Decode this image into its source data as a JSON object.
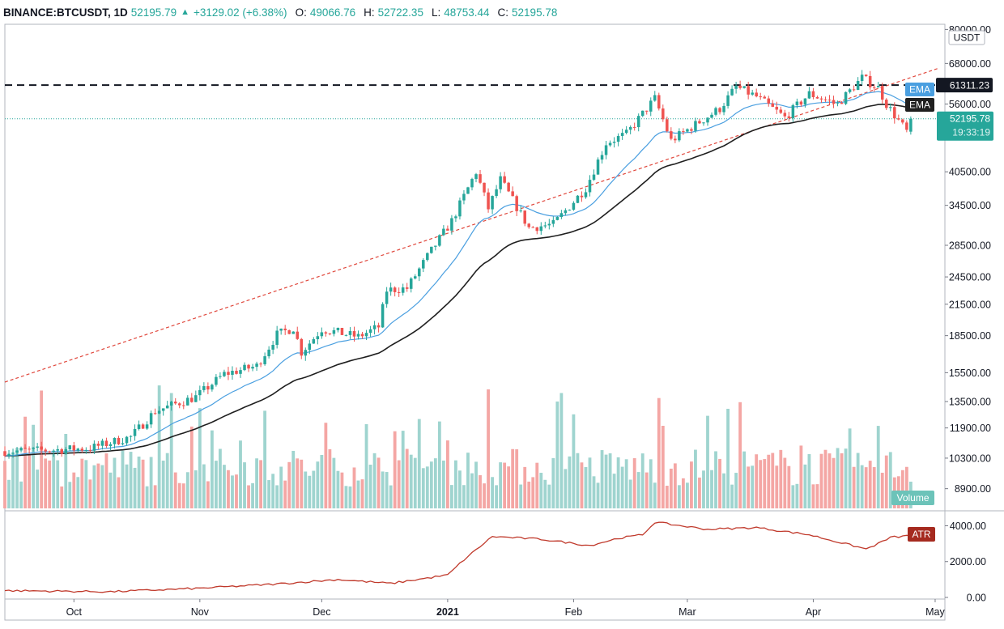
{
  "header": {
    "symbol": "BINANCE:BTCUSDT, 1D",
    "price": "52195.79",
    "change": "+3129.02 (+6.38%)",
    "o_label": "O:",
    "o_value": "49066.76",
    "h_label": "H:",
    "h_value": "52722.35",
    "l_label": "L:",
    "l_value": "48753.44",
    "c_label": "C:",
    "c_value": "52195.78"
  },
  "colors": {
    "up": "#26a69a",
    "down": "#ef5350",
    "up_volume": "#9fd4cf",
    "down_volume": "#f4a6a4",
    "ema_fast": "#4a9fe0",
    "ema_slow": "#1f1f1f",
    "trendline": "#e0473c",
    "resistance": "#131722",
    "atr": "#c0392b",
    "last_price": "#26a69a"
  },
  "chart_data": {
    "type": "candlestick",
    "price_scale": "log",
    "currency": "USDT",
    "y_ticks": [
      "80000.00",
      "68000.00",
      "56000.00",
      "40500.00",
      "34500.00",
      "28500.00",
      "24500.00",
      "21500.00",
      "18500.00",
      "15500.00",
      "13500.00",
      "11900.00",
      "10300.00",
      "8900.00"
    ],
    "x_ticks": [
      "Oct",
      "Nov",
      "Dec",
      "2021",
      "Feb",
      "Mar",
      "Apr",
      "May"
    ],
    "x_range": [
      "2020-09-14",
      "2021-05-03"
    ],
    "resistance_level": "61311.23",
    "last_price": "52195.78",
    "countdown": "19:33:19",
    "price_anchors": [
      {
        "date": "2020-09-14",
        "close": 10650
      },
      {
        "date": "2020-09-25",
        "close": 10700
      },
      {
        "date": "2020-10-05",
        "close": 10800
      },
      {
        "date": "2020-10-15",
        "close": 11400
      },
      {
        "date": "2020-10-21",
        "close": 12900
      },
      {
        "date": "2020-10-31",
        "close": 13800
      },
      {
        "date": "2020-11-07",
        "close": 15400
      },
      {
        "date": "2020-11-15",
        "close": 16000
      },
      {
        "date": "2020-11-20",
        "close": 18600
      },
      {
        "date": "2020-11-24",
        "close": 19200
      },
      {
        "date": "2020-11-26",
        "close": 17100
      },
      {
        "date": "2020-12-01",
        "close": 19100
      },
      {
        "date": "2020-12-10",
        "close": 18400
      },
      {
        "date": "2020-12-15",
        "close": 19300
      },
      {
        "date": "2020-12-17",
        "close": 23000
      },
      {
        "date": "2020-12-22",
        "close": 23200
      },
      {
        "date": "2020-12-27",
        "close": 27000
      },
      {
        "date": "2021-01-02",
        "close": 32000
      },
      {
        "date": "2021-01-08",
        "close": 40500
      },
      {
        "date": "2021-01-11",
        "close": 34000
      },
      {
        "date": "2021-01-14",
        "close": 39000
      },
      {
        "date": "2021-01-21",
        "close": 31000
      },
      {
        "date": "2021-01-27",
        "close": 31500
      },
      {
        "date": "2021-02-04",
        "close": 37500
      },
      {
        "date": "2021-02-09",
        "close": 46500
      },
      {
        "date": "2021-02-14",
        "close": 48500
      },
      {
        "date": "2021-02-21",
        "close": 57500
      },
      {
        "date": "2021-02-25",
        "close": 47000
      },
      {
        "date": "2021-03-01",
        "close": 49500
      },
      {
        "date": "2021-03-09",
        "close": 54800
      },
      {
        "date": "2021-03-13",
        "close": 60800
      },
      {
        "date": "2021-03-18",
        "close": 58000
      },
      {
        "date": "2021-03-25",
        "close": 52500
      },
      {
        "date": "2021-03-31",
        "close": 58800
      },
      {
        "date": "2021-04-07",
        "close": 56000
      },
      {
        "date": "2021-04-13",
        "close": 63500
      },
      {
        "date": "2021-04-17",
        "close": 60500
      },
      {
        "date": "2021-04-19",
        "close": 56000
      },
      {
        "date": "2021-04-24",
        "close": 49066
      },
      {
        "date": "2021-04-25",
        "close": 52196
      }
    ],
    "volume_axis_label": "Volume",
    "ema_label": "EMA",
    "atr": {
      "label": "ATR",
      "y_ticks": [
        "4000.00",
        "2000.00",
        "0.00"
      ],
      "anchors": [
        {
          "date": "2020-09-14",
          "value": 380
        },
        {
          "date": "2020-10-10",
          "value": 320
        },
        {
          "date": "2020-10-31",
          "value": 500
        },
        {
          "date": "2020-11-20",
          "value": 750
        },
        {
          "date": "2020-12-05",
          "value": 1000
        },
        {
          "date": "2020-12-18",
          "value": 780
        },
        {
          "date": "2021-01-01",
          "value": 1250
        },
        {
          "date": "2021-01-05",
          "value": 2100
        },
        {
          "date": "2021-01-12",
          "value": 3400
        },
        {
          "date": "2021-01-24",
          "value": 3250
        },
        {
          "date": "2021-02-05",
          "value": 2900
        },
        {
          "date": "2021-02-12",
          "value": 3300
        },
        {
          "date": "2021-02-18",
          "value": 3500
        },
        {
          "date": "2021-02-21",
          "value": 4200
        },
        {
          "date": "2021-03-06",
          "value": 3800
        },
        {
          "date": "2021-03-18",
          "value": 3900
        },
        {
          "date": "2021-03-31",
          "value": 3500
        },
        {
          "date": "2021-04-14",
          "value": 2700
        },
        {
          "date": "2021-04-17",
          "value": 3000
        },
        {
          "date": "2021-04-20",
          "value": 3350
        },
        {
          "date": "2021-04-25",
          "value": 3450
        }
      ]
    }
  }
}
